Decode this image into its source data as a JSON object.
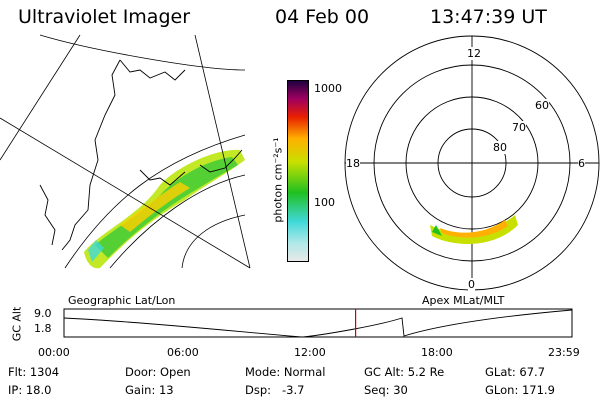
{
  "header": {
    "instrument": "Ultraviolet Imager",
    "date": "04 Feb 00",
    "time": "13:47:39 UT"
  },
  "colorbar": {
    "unit_label": "photon cm⁻²s⁻¹",
    "ticks": [
      "1000",
      "100"
    ]
  },
  "map_panel": {
    "label": "Geographic Lat/Lon"
  },
  "polar_panel": {
    "label": "Apex  MLat/MLT",
    "mlt_labels": [
      "12",
      "18",
      "6",
      "0"
    ],
    "mlat_labels": [
      "60",
      "70",
      "80"
    ]
  },
  "altitude_plot": {
    "ylabel": "GC Alt",
    "ytick_top": "9.0",
    "ytick_bottom": "1.8",
    "xticks": [
      "00:00",
      "06:00",
      "12:00",
      "18:00",
      "23:59"
    ],
    "current_time_fraction": 0.574
  },
  "status": {
    "row1": [
      {
        "key": "Flt:",
        "value": "1304"
      },
      {
        "key": "Door:",
        "value": "Open"
      },
      {
        "key": "Mode:",
        "value": "Normal"
      },
      {
        "key": "GC Alt:",
        "value": "5.2 Re"
      },
      {
        "key": "GLat:",
        "value": "67.7"
      }
    ],
    "row2": [
      {
        "key": "IP:",
        "value": "18.0"
      },
      {
        "key": "Gain:",
        "value": "13"
      },
      {
        "key": "Dsp:",
        "value": "  -3.7"
      },
      {
        "key": "Seq:",
        "value": "30"
      },
      {
        "key": "GLon:",
        "value": "171.9"
      }
    ]
  },
  "colors": {
    "current_time_marker": "#d00000",
    "colorbar_stops": [
      "#e8e8e8",
      "#40d8d8",
      "#20c020",
      "#c8e000",
      "#ffb000",
      "#e82000",
      "#a00060",
      "#200040"
    ]
  }
}
